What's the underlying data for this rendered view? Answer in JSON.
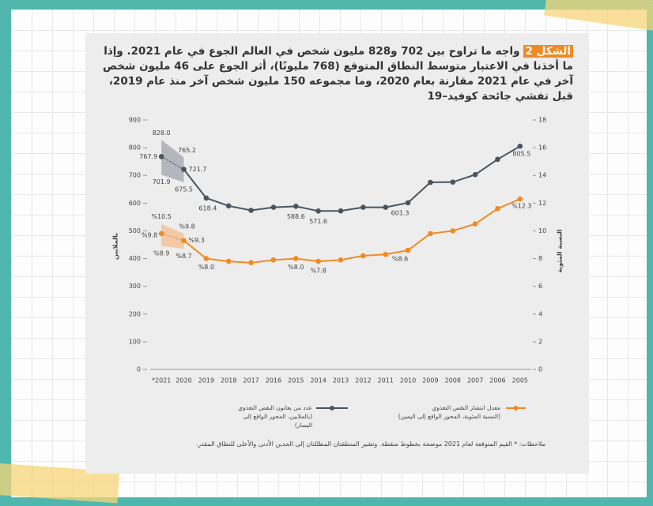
{
  "chart_data": {
    "type": "line",
    "title_tag": "الشكل 2",
    "title": "واجه ما تراوح بين 702 و828 مليون شخص في العالم الجوع في عام 2021. وإذا ما أخذنا في الاعتبار متوسط النطاق المتوقع (768 مليونًا)، أثر الجوع على 46 مليون شخص آخر في عام 2021 مقارنة بعام 2020، وما مجموعه 150 مليون شخص آخر منذ عام 2019، قبل تفشي جائحة كوفيد–19",
    "categories": [
      "*2021",
      "2020",
      "2019",
      "2018",
      "2017",
      "2016",
      "2015",
      "2014",
      "2013",
      "2012",
      "2011",
      "2010",
      "2009",
      "2008",
      "2007",
      "2006",
      "2005"
    ],
    "ylabel": "بالملايين",
    "y2label": "النسبة المئوية",
    "ylim": [
      0,
      900
    ],
    "yticks": [
      0,
      100,
      200,
      300,
      400,
      500,
      600,
      700,
      800,
      900
    ],
    "y2lim": [
      0,
      18
    ],
    "y2ticks": [
      0,
      2,
      4,
      6,
      8,
      10,
      12,
      14,
      16,
      18
    ],
    "grid": false,
    "series": [
      {
        "name": "عدد من يعانون النقص التغذوي",
        "name_note": "(بالملايين، المحور الواقع إلى اليسار)",
        "color": "#4a5560",
        "band_color": "#8c939c",
        "axis": "y",
        "dash_first_segment": true,
        "values": [
          767.9,
          721.7,
          618.4,
          590,
          574,
          585,
          588.6,
          571.6,
          572,
          585,
          585,
          601.3,
          675,
          676,
          703,
          758,
          805.5
        ],
        "value_labels": [
          "767.9",
          "721.7",
          "618.4",
          null,
          null,
          null,
          "588.6",
          "571.6",
          null,
          null,
          null,
          "601.3",
          null,
          null,
          null,
          null,
          "805.5"
        ],
        "band": {
          "low": [
            701.9,
            675.5
          ],
          "high": [
            828.0,
            765.2
          ],
          "low_labels": [
            "701.9",
            "675.5"
          ],
          "high_labels": [
            "828.0",
            "765.2"
          ]
        }
      },
      {
        "name": "معدل انتشار النقص التغذوي",
        "name_note": "(النسبة المئوية، المحور الواقع إلى اليمين)",
        "color": "#f08a24",
        "band_color": "#f7b07a",
        "axis": "y2",
        "dash_first_segment": true,
        "values": [
          9.8,
          9.3,
          8.0,
          7.8,
          7.7,
          7.9,
          8.0,
          7.8,
          7.9,
          8.2,
          8.3,
          8.6,
          9.8,
          10.0,
          10.5,
          11.6,
          12.3
        ],
        "value_labels": [
          "%9.8",
          "%9.3",
          "%8.0",
          null,
          null,
          null,
          "%8.0",
          "%7.8",
          null,
          null,
          null,
          "%8.6",
          null,
          null,
          null,
          null,
          "%12.3"
        ],
        "band": {
          "low": [
            8.9,
            8.7
          ],
          "high": [
            10.5,
            9.8
          ],
          "low_labels": [
            "%8.9",
            "%8.7"
          ],
          "high_labels": [
            "%10.5",
            "%9.8"
          ]
        }
      }
    ],
    "note": "ملاحظات: * القيم المتوقعة لعام 2021 موضحة بخطوط منقطة. وتشير المنطقتان المظللتان إلى الحدين الأدنى والأعلى للنطاق المقدر."
  }
}
